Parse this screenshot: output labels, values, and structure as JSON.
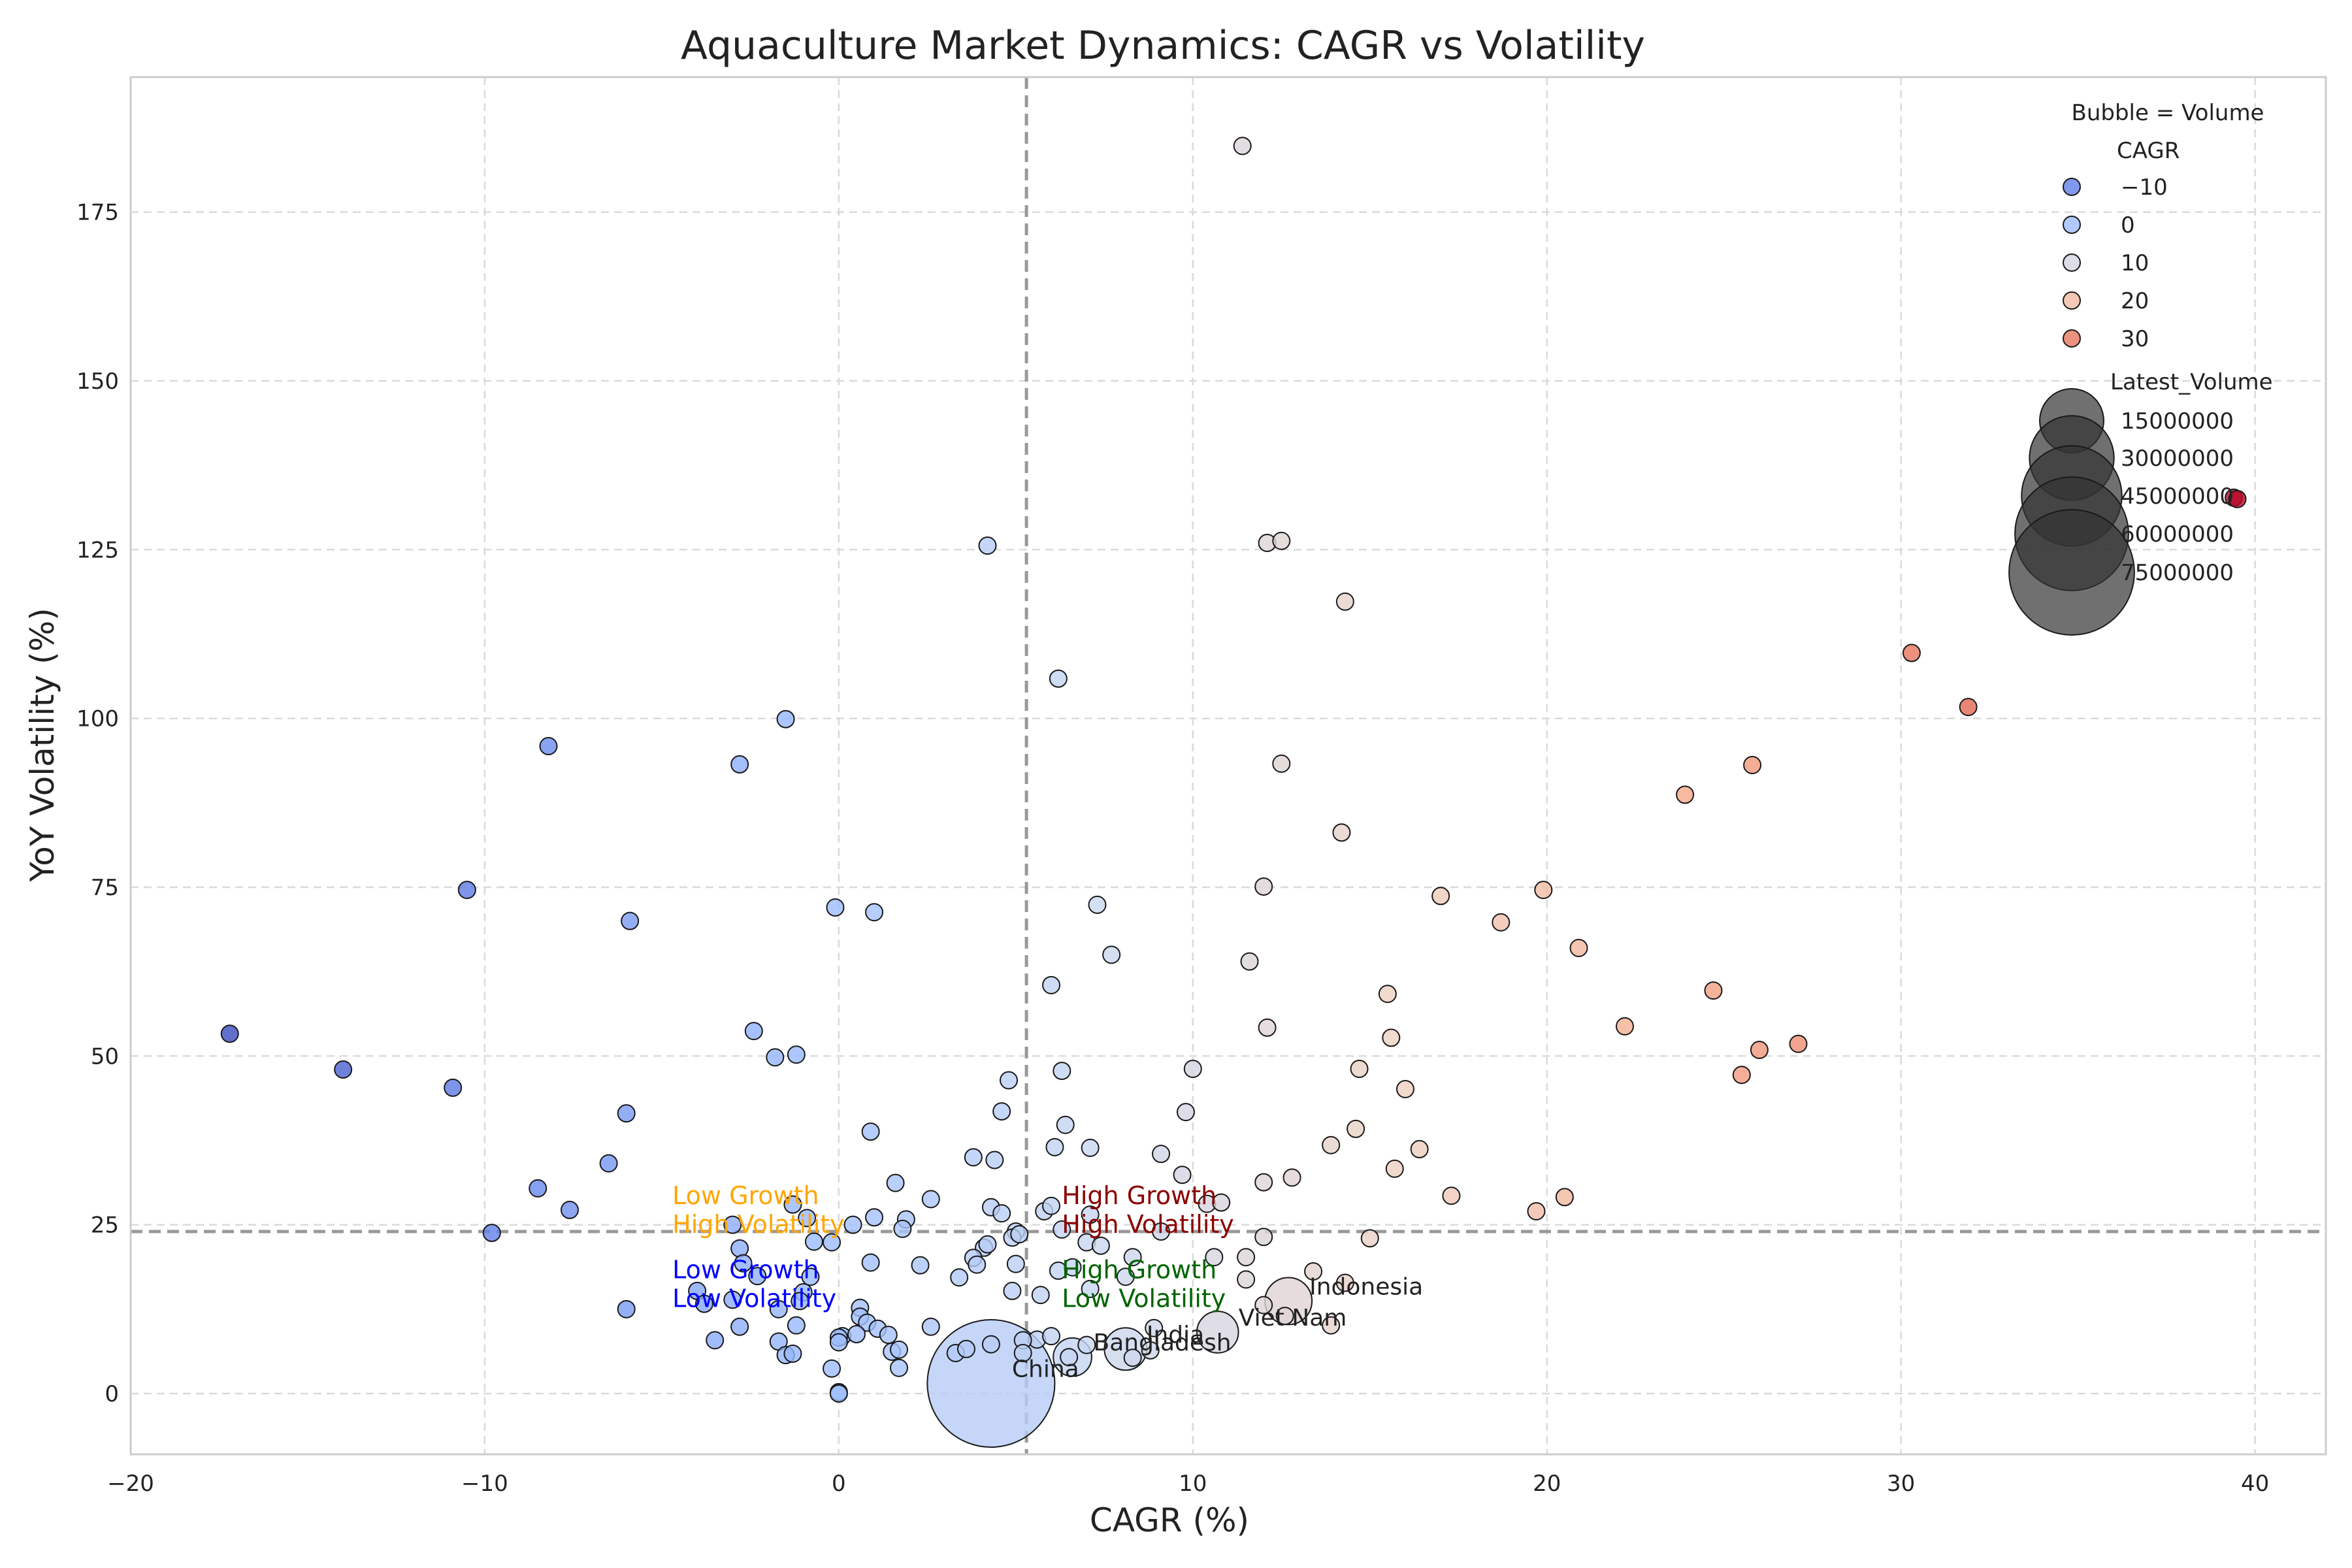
{
  "chart_data": {
    "type": "scatter",
    "title": "Aquaculture Market Dynamics: CAGR vs Volatility",
    "xlabel": "CAGR (%)",
    "ylabel": "YoY Volatility (%)",
    "xlim": [
      -20,
      42
    ],
    "ylim": [
      -9,
      195
    ],
    "xticks": [
      -20,
      -10,
      0,
      10,
      20,
      30,
      40
    ],
    "yticks": [
      0,
      25,
      50,
      75,
      100,
      125,
      150,
      175
    ],
    "x_tick_labels": [
      "−20",
      "−10",
      "0",
      "10",
      "20",
      "30",
      "40"
    ],
    "y_tick_labels": [
      "0",
      "25",
      "50",
      "75",
      "100",
      "125",
      "150",
      "175"
    ],
    "grid": true,
    "colormap": [
      "#3b4cc0",
      "#6788ee",
      "#9abbff",
      "#c9d7f0",
      "#edd1c2",
      "#f7a889",
      "#e26952",
      "#b40426"
    ],
    "color_range": [
      -17,
      40
    ],
    "reference_lines": {
      "x": 5.3,
      "y": 24
    },
    "quadrant_labels": [
      {
        "line1": "Low Growth",
        "line2": "High Volatility",
        "color": "#ffa500",
        "x": -4.7,
        "y": 27.3
      },
      {
        "line1": "High Growth",
        "line2": "High Volatility",
        "color": "#8b0000",
        "x": 6.3,
        "y": 27.3
      },
      {
        "line1": "Low Growth",
        "line2": "Low Volatility",
        "color": "#0000ff",
        "x": -4.7,
        "y": 16.3
      },
      {
        "line1": "High Growth",
        "line2": "Low Volatility",
        "color": "#006400",
        "x": 6.3,
        "y": 16.3
      }
    ],
    "legend": {
      "position": "top-right",
      "title": "Bubble = Volume",
      "color_title": "CAGR",
      "color_entries": [
        {
          "label": "−10",
          "value": -10
        },
        {
          "label": "0",
          "value": 0
        },
        {
          "label": "10",
          "value": 10
        },
        {
          "label": "20",
          "value": 20
        },
        {
          "label": "30",
          "value": 30
        }
      ],
      "size_title": "Latest_Volume",
      "size_entries": [
        {
          "label": "15000000",
          "value": 15000000
        },
        {
          "label": "30000000",
          "value": 30000000
        },
        {
          "label": "45000000",
          "value": 45000000
        },
        {
          "label": "60000000",
          "value": 60000000
        },
        {
          "label": "75000000",
          "value": 75000000
        }
      ]
    },
    "points": [
      {
        "x": 4.3,
        "y": 1.5,
        "v": 78000000,
        "label": "China"
      },
      {
        "x": 12.7,
        "y": 13.7,
        "v": 6500000,
        "label": "Indonesia"
      },
      {
        "x": 10.7,
        "y": 9.1,
        "v": 4500000,
        "label": "Viet Nam"
      },
      {
        "x": 8.1,
        "y": 6.6,
        "v": 4800000,
        "label": "India"
      },
      {
        "x": 6.6,
        "y": 5.4,
        "v": 3500000,
        "label": "Bangladesh"
      },
      {
        "x": 11.4,
        "y": 184.8,
        "v": 0
      },
      {
        "x": 12.1,
        "y": 126.0,
        "v": 0
      },
      {
        "x": 12.5,
        "y": 126.3,
        "v": 0
      },
      {
        "x": 4.2,
        "y": 125.6,
        "v": 0
      },
      {
        "x": 14.3,
        "y": 117.3,
        "v": 0
      },
      {
        "x": 6.2,
        "y": 105.9,
        "v": 0
      },
      {
        "x": 30.3,
        "y": 109.7,
        "v": 0
      },
      {
        "x": 31.9,
        "y": 101.7,
        "v": 0
      },
      {
        "x": 39.4,
        "y": 132.7,
        "v": 0
      },
      {
        "x": 39.5,
        "y": 132.5,
        "v": 0
      },
      {
        "x": -1.5,
        "y": 99.9,
        "v": 0
      },
      {
        "x": -8.2,
        "y": 95.9,
        "v": 0
      },
      {
        "x": -2.8,
        "y": 93.2,
        "v": 0
      },
      {
        "x": 12.5,
        "y": 93.3,
        "v": 0
      },
      {
        "x": 23.9,
        "y": 88.7,
        "v": 0
      },
      {
        "x": 25.8,
        "y": 93.1,
        "v": 0
      },
      {
        "x": 14.2,
        "y": 83.1,
        "v": 0
      },
      {
        "x": -10.5,
        "y": 74.6,
        "v": 0
      },
      {
        "x": -5.9,
        "y": 70.0,
        "v": 0
      },
      {
        "x": -0.1,
        "y": 72.0,
        "v": 0
      },
      {
        "x": 1.0,
        "y": 71.3,
        "v": 0
      },
      {
        "x": 7.3,
        "y": 72.4,
        "v": 0
      },
      {
        "x": 12.0,
        "y": 75.1,
        "v": 0
      },
      {
        "x": 17.0,
        "y": 73.7,
        "v": 0
      },
      {
        "x": 19.9,
        "y": 74.6,
        "v": 0
      },
      {
        "x": 18.7,
        "y": 69.8,
        "v": 0
      },
      {
        "x": 20.9,
        "y": 66.0,
        "v": 0
      },
      {
        "x": 7.7,
        "y": 65.0,
        "v": 0
      },
      {
        "x": 11.6,
        "y": 64.0,
        "v": 0
      },
      {
        "x": 6.0,
        "y": 60.5,
        "v": 0
      },
      {
        "x": 15.5,
        "y": 59.2,
        "v": 0
      },
      {
        "x": 24.7,
        "y": 59.7,
        "v": 0
      },
      {
        "x": -17.2,
        "y": 53.3,
        "v": 0
      },
      {
        "x": -14.0,
        "y": 48.0,
        "v": 0
      },
      {
        "x": -10.9,
        "y": 45.3,
        "v": 0
      },
      {
        "x": -2.4,
        "y": 53.7,
        "v": 0
      },
      {
        "x": -1.8,
        "y": 49.8,
        "v": 0
      },
      {
        "x": -1.2,
        "y": 50.2,
        "v": 0
      },
      {
        "x": 12.1,
        "y": 54.2,
        "v": 0
      },
      {
        "x": 15.6,
        "y": 52.7,
        "v": 0
      },
      {
        "x": 22.2,
        "y": 54.4,
        "v": 0
      },
      {
        "x": 26.0,
        "y": 50.9,
        "v": 0
      },
      {
        "x": 27.1,
        "y": 51.8,
        "v": 0
      },
      {
        "x": 25.5,
        "y": 47.2,
        "v": 0
      },
      {
        "x": 10.0,
        "y": 48.1,
        "v": 0
      },
      {
        "x": 14.7,
        "y": 48.1,
        "v": 0
      },
      {
        "x": 6.3,
        "y": 47.8,
        "v": 0
      },
      {
        "x": 4.8,
        "y": 46.4,
        "v": 0
      },
      {
        "x": 16.0,
        "y": 45.1,
        "v": 0
      },
      {
        "x": -6.0,
        "y": 41.5,
        "v": 0
      },
      {
        "x": 4.6,
        "y": 41.8,
        "v": 0
      },
      {
        "x": 9.8,
        "y": 41.7,
        "v": 0
      },
      {
        "x": 0.9,
        "y": 38.8,
        "v": 0
      },
      {
        "x": 6.4,
        "y": 39.8,
        "v": 0
      },
      {
        "x": 14.6,
        "y": 39.2,
        "v": 0
      },
      {
        "x": 6.1,
        "y": 36.5,
        "v": 0
      },
      {
        "x": 7.1,
        "y": 36.4,
        "v": 0
      },
      {
        "x": 13.9,
        "y": 36.8,
        "v": 0
      },
      {
        "x": 16.4,
        "y": 36.2,
        "v": 0
      },
      {
        "x": -6.5,
        "y": 34.1,
        "v": 0
      },
      {
        "x": 3.8,
        "y": 35.0,
        "v": 0
      },
      {
        "x": 4.4,
        "y": 34.6,
        "v": 0
      },
      {
        "x": 9.1,
        "y": 35.5,
        "v": 0
      },
      {
        "x": 15.7,
        "y": 33.3,
        "v": 0
      },
      {
        "x": -8.5,
        "y": 30.4,
        "v": 0
      },
      {
        "x": 1.6,
        "y": 31.2,
        "v": 0
      },
      {
        "x": 9.7,
        "y": 32.4,
        "v": 0
      },
      {
        "x": 12.0,
        "y": 31.3,
        "v": 0
      },
      {
        "x": 12.8,
        "y": 32.0,
        "v": 0
      },
      {
        "x": 17.3,
        "y": 29.3,
        "v": 0
      },
      {
        "x": 20.5,
        "y": 29.1,
        "v": 0
      },
      {
        "x": -7.6,
        "y": 27.2,
        "v": 0
      },
      {
        "x": -1.3,
        "y": 28.0,
        "v": 0
      },
      {
        "x": 2.6,
        "y": 28.8,
        "v": 0
      },
      {
        "x": 4.3,
        "y": 27.6,
        "v": 0
      },
      {
        "x": 5.8,
        "y": 27.0,
        "v": 0
      },
      {
        "x": 6.0,
        "y": 27.8,
        "v": 0
      },
      {
        "x": 7.1,
        "y": 26.5,
        "v": 0
      },
      {
        "x": 10.4,
        "y": 28.1,
        "v": 0
      },
      {
        "x": 10.8,
        "y": 28.3,
        "v": 0
      },
      {
        "x": 19.7,
        "y": 27.0,
        "v": 0
      },
      {
        "x": -3.0,
        "y": 25.0,
        "v": 0
      },
      {
        "x": -0.9,
        "y": 26.0,
        "v": 0
      },
      {
        "x": 0.4,
        "y": 25.0,
        "v": 0
      },
      {
        "x": 1.0,
        "y": 26.1,
        "v": 0
      },
      {
        "x": 1.9,
        "y": 25.8,
        "v": 0
      },
      {
        "x": 4.6,
        "y": 26.7,
        "v": 0
      },
      {
        "x": 1.8,
        "y": 24.4,
        "v": 0
      },
      {
        "x": 5.0,
        "y": 24.0,
        "v": 0
      },
      {
        "x": 6.3,
        "y": 24.3,
        "v": 0
      },
      {
        "x": 9.1,
        "y": 24.0,
        "v": 0
      },
      {
        "x": -9.8,
        "y": 23.8,
        "v": 0
      },
      {
        "x": -0.7,
        "y": 22.5,
        "v": 0
      },
      {
        "x": -0.2,
        "y": 22.4,
        "v": 0
      },
      {
        "x": 4.1,
        "y": 21.6,
        "v": 0
      },
      {
        "x": 4.2,
        "y": 22.1,
        "v": 0
      },
      {
        "x": 4.9,
        "y": 23.1,
        "v": 0
      },
      {
        "x": 5.1,
        "y": 23.6,
        "v": 0
      },
      {
        "x": 7.0,
        "y": 22.4,
        "v": 0
      },
      {
        "x": 7.4,
        "y": 21.9,
        "v": 0
      },
      {
        "x": 12.0,
        "y": 23.2,
        "v": 0
      },
      {
        "x": 15.0,
        "y": 23.0,
        "v": 0
      },
      {
        "x": -2.8,
        "y": 21.5,
        "v": 0
      },
      {
        "x": 3.8,
        "y": 20.1,
        "v": 0
      },
      {
        "x": 8.3,
        "y": 20.2,
        "v": 0
      },
      {
        "x": 10.6,
        "y": 20.2,
        "v": 0
      },
      {
        "x": 11.5,
        "y": 20.2,
        "v": 0
      },
      {
        "x": -2.7,
        "y": 19.3,
        "v": 0
      },
      {
        "x": 0.9,
        "y": 19.4,
        "v": 0
      },
      {
        "x": 2.3,
        "y": 19.0,
        "v": 0
      },
      {
        "x": 3.9,
        "y": 19.1,
        "v": 0
      },
      {
        "x": 5.0,
        "y": 19.2,
        "v": 0
      },
      {
        "x": 6.6,
        "y": 18.7,
        "v": 0
      },
      {
        "x": 6.2,
        "y": 18.2,
        "v": 0
      },
      {
        "x": 8.1,
        "y": 17.3,
        "v": 0
      },
      {
        "x": -2.3,
        "y": 17.4,
        "v": 0
      },
      {
        "x": -0.8,
        "y": 17.3,
        "v": 0
      },
      {
        "x": 3.4,
        "y": 17.2,
        "v": 0
      },
      {
        "x": 11.5,
        "y": 16.9,
        "v": 0
      },
      {
        "x": 13.4,
        "y": 18.1,
        "v": 0
      },
      {
        "x": 14.3,
        "y": 16.4,
        "v": 0
      },
      {
        "x": -1.0,
        "y": 15.0,
        "v": 0
      },
      {
        "x": 4.9,
        "y": 15.2,
        "v": 0
      },
      {
        "x": 5.7,
        "y": 14.6,
        "v": 0
      },
      {
        "x": 7.1,
        "y": 15.5,
        "v": 0
      },
      {
        "x": -4.0,
        "y": 15.2,
        "v": 0
      },
      {
        "x": -3.8,
        "y": 13.3,
        "v": 0
      },
      {
        "x": -3.0,
        "y": 13.9,
        "v": 0
      },
      {
        "x": -1.1,
        "y": 13.7,
        "v": 0
      },
      {
        "x": -6.0,
        "y": 12.5,
        "v": 0
      },
      {
        "x": -1.7,
        "y": 12.5,
        "v": 0
      },
      {
        "x": 0.6,
        "y": 12.7,
        "v": 0
      },
      {
        "x": 0.6,
        "y": 11.4,
        "v": 0
      },
      {
        "x": 12.0,
        "y": 13.1,
        "v": 0
      },
      {
        "x": 12.6,
        "y": 11.5,
        "v": 0
      },
      {
        "x": 13.9,
        "y": 10.1,
        "v": 0
      },
      {
        "x": -1.2,
        "y": 10.1,
        "v": 0
      },
      {
        "x": -2.8,
        "y": 9.9,
        "v": 0
      },
      {
        "x": 0.8,
        "y": 10.5,
        "v": 0
      },
      {
        "x": 1.1,
        "y": 9.6,
        "v": 0
      },
      {
        "x": 2.6,
        "y": 9.9,
        "v": 0
      },
      {
        "x": 8.9,
        "y": 9.7,
        "v": 0
      },
      {
        "x": 0.1,
        "y": 8.5,
        "v": 0
      },
      {
        "x": 0.5,
        "y": 8.8,
        "v": 0
      },
      {
        "x": 1.4,
        "y": 8.7,
        "v": 0
      },
      {
        "x": -3.5,
        "y": 7.9,
        "v": 0
      },
      {
        "x": -1.7,
        "y": 7.7,
        "v": 0
      },
      {
        "x": 0.0,
        "y": 8.3,
        "v": 0
      },
      {
        "x": 0.0,
        "y": 7.6,
        "v": 0
      },
      {
        "x": 4.3,
        "y": 7.3,
        "v": 0
      },
      {
        "x": 5.6,
        "y": 8.0,
        "v": 0
      },
      {
        "x": 6.0,
        "y": 8.5,
        "v": 0
      },
      {
        "x": 5.2,
        "y": 7.9,
        "v": 0
      },
      {
        "x": 7.0,
        "y": 7.2,
        "v": 0
      },
      {
        "x": 8.8,
        "y": 6.4,
        "v": 0
      },
      {
        "x": 3.3,
        "y": 6.0,
        "v": 0
      },
      {
        "x": 3.6,
        "y": 6.6,
        "v": 0
      },
      {
        "x": 1.5,
        "y": 6.2,
        "v": 0
      },
      {
        "x": 1.7,
        "y": 6.5,
        "v": 0
      },
      {
        "x": -1.5,
        "y": 5.7,
        "v": 0
      },
      {
        "x": -1.3,
        "y": 5.9,
        "v": 0
      },
      {
        "x": 5.2,
        "y": 6.0,
        "v": 0
      },
      {
        "x": 6.5,
        "y": 5.4,
        "v": 0
      },
      {
        "x": 8.3,
        "y": 5.3,
        "v": 0
      },
      {
        "x": -0.2,
        "y": 3.7,
        "v": 0
      },
      {
        "x": 1.7,
        "y": 3.8,
        "v": 0
      },
      {
        "x": 0.0,
        "y": 0.2,
        "v": 0
      },
      {
        "x": 0.0,
        "y": 0.0,
        "v": 0
      }
    ]
  }
}
